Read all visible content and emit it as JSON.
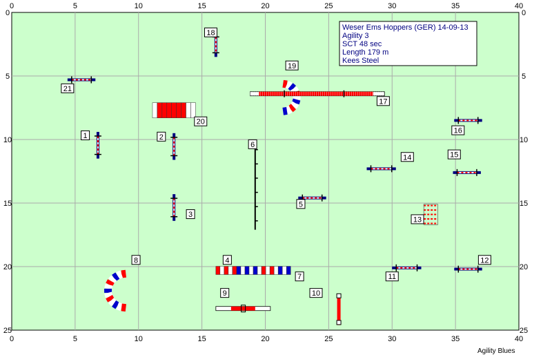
{
  "info": {
    "lines": [
      "Weser Ems Hoppers (GER) 14-09-13",
      "Agility 3",
      "SCT 48 sec",
      "Length 179 m",
      "Kees Steel"
    ]
  },
  "footer": {
    "label": "Agility Blues"
  },
  "colors": {
    "field": "#ccffcc",
    "grid": "#aaaaaa",
    "red": "#ff0000",
    "blue": "#0000cc",
    "navy": "#000080",
    "info_border": "#000000"
  },
  "axes": {
    "x_ticks": [
      "0",
      "5",
      "10",
      "15",
      "20",
      "25",
      "30",
      "35",
      "40"
    ],
    "y_ticks": [
      "0",
      "5",
      "10",
      "15",
      "20",
      "25"
    ]
  },
  "obstacles": [
    {
      "num": "1",
      "type": "jump"
    },
    {
      "num": "2",
      "type": "jump"
    },
    {
      "num": "3",
      "type": "jump"
    },
    {
      "num": "4",
      "type": "tunnel"
    },
    {
      "num": "5",
      "type": "jump"
    },
    {
      "num": "6",
      "type": "weave"
    },
    {
      "num": "7",
      "type": "tunnel"
    },
    {
      "num": "8",
      "type": "tunnel"
    },
    {
      "num": "9",
      "type": "table"
    },
    {
      "num": "10",
      "type": "jump"
    },
    {
      "num": "11",
      "type": "jump"
    },
    {
      "num": "12",
      "type": "jump"
    },
    {
      "num": "13",
      "type": "wall"
    },
    {
      "num": "14",
      "type": "jump"
    },
    {
      "num": "15",
      "type": "jump"
    },
    {
      "num": "16",
      "type": "jump"
    },
    {
      "num": "17",
      "type": "dogwalk"
    },
    {
      "num": "18",
      "type": "jump"
    },
    {
      "num": "19",
      "type": "tunnel"
    },
    {
      "num": "20",
      "type": "tire"
    },
    {
      "num": "21",
      "type": "jump"
    }
  ]
}
